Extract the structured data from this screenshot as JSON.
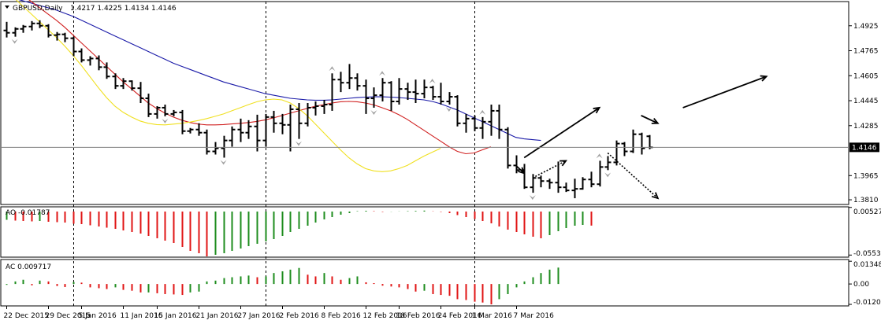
{
  "chart_data": [
    {
      "type": "ohlc",
      "title": "GBPUSD,Daily",
      "ohlc_text": "1.4217 1.4225 1.4134 1.4146",
      "price_ticks": [
        "1.4925",
        "1.4765",
        "1.4605",
        "1.4445",
        "1.4285",
        "1.3965",
        "1.3810"
      ],
      "current_price": "1.4146",
      "y_range": [
        1.378,
        1.508
      ],
      "x_labels": [
        "22 Dec 2015",
        "29 Dec 2015",
        "5 Jan 2016",
        "11 Jan 2016",
        "15 Jan 2016",
        "21 Jan 2016",
        "27 Jan 2016",
        "2 Feb 2016",
        "8 Feb 2016",
        "12 Feb 2016",
        "18 Feb 2016",
        "24 Feb 2016",
        "1 Mar 2016",
        "7 Mar 2016"
      ],
      "x_label_index": [
        0,
        5,
        9,
        14,
        18,
        23,
        28,
        33,
        38,
        43,
        47,
        52,
        56,
        61
      ],
      "period_separators_index": [
        8,
        31,
        56
      ],
      "bars": [
        [
          1.4895,
          1.495,
          1.485,
          1.488
        ],
        [
          1.488,
          1.4915,
          1.4855,
          1.4905
        ],
        [
          1.4905,
          1.493,
          1.488,
          1.492
        ],
        [
          1.492,
          1.4955,
          1.4895,
          1.494
        ],
        [
          1.494,
          1.496,
          1.491,
          1.4925
        ],
        [
          1.4925,
          1.4935,
          1.485,
          1.4865
        ],
        [
          1.4865,
          1.4885,
          1.483,
          1.487
        ],
        [
          1.487,
          1.488,
          1.482,
          1.4845
        ],
        [
          1.4845,
          1.4855,
          1.473,
          1.476
        ],
        [
          1.476,
          1.478,
          1.469,
          1.4705
        ],
        [
          1.4705,
          1.473,
          1.467,
          1.4715
        ],
        [
          1.4715,
          1.4735,
          1.464,
          1.466
        ],
        [
          1.466,
          1.469,
          1.4585,
          1.46
        ],
        [
          1.46,
          1.462,
          1.452,
          1.454
        ],
        [
          1.454,
          1.459,
          1.452,
          1.457
        ],
        [
          1.457,
          1.4575,
          1.451,
          1.4525
        ],
        [
          1.4525,
          1.4565,
          1.443,
          1.446
        ],
        [
          1.446,
          1.449,
          1.434,
          1.436
        ],
        [
          1.436,
          1.441,
          1.433,
          1.44
        ],
        [
          1.44,
          1.442,
          1.4345,
          1.436
        ],
        [
          1.436,
          1.4385,
          1.4345,
          1.437
        ],
        [
          1.437,
          1.4385,
          1.423,
          1.425
        ],
        [
          1.425,
          1.427,
          1.4235,
          1.426
        ],
        [
          1.426,
          1.43,
          1.422,
          1.424
        ],
        [
          1.424,
          1.426,
          1.41,
          1.412
        ],
        [
          1.412,
          1.418,
          1.41,
          1.414
        ],
        [
          1.414,
          1.422,
          1.408,
          1.419
        ],
        [
          1.419,
          1.428,
          1.415,
          1.426
        ],
        [
          1.426,
          1.433,
          1.418,
          1.424
        ],
        [
          1.424,
          1.432,
          1.42,
          1.428
        ],
        [
          1.428,
          1.4355,
          1.412,
          1.419
        ],
        [
          1.419,
          1.436,
          1.415,
          1.434
        ],
        [
          1.434,
          1.438,
          1.424,
          1.43
        ],
        [
          1.43,
          1.436,
          1.423,
          1.429
        ],
        [
          1.429,
          1.442,
          1.412,
          1.439
        ],
        [
          1.439,
          1.443,
          1.42,
          1.43
        ],
        [
          1.43,
          1.443,
          1.428,
          1.44
        ],
        [
          1.44,
          1.444,
          1.435,
          1.441
        ],
        [
          1.441,
          1.445,
          1.436,
          1.442
        ],
        [
          1.442,
          1.462,
          1.438,
          1.458
        ],
        [
          1.458,
          1.463,
          1.45,
          1.456
        ],
        [
          1.456,
          1.468,
          1.452,
          1.459
        ],
        [
          1.459,
          1.462,
          1.451,
          1.454
        ],
        [
          1.454,
          1.458,
          1.436,
          1.446
        ],
        [
          1.446,
          1.453,
          1.44,
          1.448
        ],
        [
          1.448,
          1.459,
          1.444,
          1.456
        ],
        [
          1.456,
          1.457,
          1.438,
          1.444
        ],
        [
          1.444,
          1.459,
          1.442,
          1.452
        ],
        [
          1.452,
          1.456,
          1.445,
          1.45
        ],
        [
          1.45,
          1.458,
          1.443,
          1.449
        ],
        [
          1.449,
          1.458,
          1.446,
          1.453
        ],
        [
          1.453,
          1.454,
          1.445,
          1.447
        ],
        [
          1.447,
          1.456,
          1.442,
          1.444
        ],
        [
          1.444,
          1.45,
          1.442,
          1.447
        ],
        [
          1.447,
          1.448,
          1.428,
          1.43
        ],
        [
          1.43,
          1.436,
          1.424,
          1.433
        ],
        [
          1.433,
          1.435,
          1.425,
          1.427
        ],
        [
          1.427,
          1.434,
          1.42,
          1.431
        ],
        [
          1.431,
          1.442,
          1.422,
          1.438
        ],
        [
          1.438,
          1.442,
          1.42,
          1.426
        ],
        [
          1.426,
          1.4275,
          1.401,
          1.403
        ],
        [
          1.403,
          1.4095,
          1.398,
          1.4
        ],
        [
          1.4,
          1.404,
          1.388,
          1.389
        ],
        [
          1.389,
          1.3975,
          1.3855,
          1.395
        ],
        [
          1.395,
          1.3965,
          1.389,
          1.393
        ],
        [
          1.393,
          1.3945,
          1.388,
          1.392
        ],
        [
          1.392,
          1.4055,
          1.3855,
          1.389
        ],
        [
          1.389,
          1.392,
          1.386,
          1.387
        ],
        [
          1.387,
          1.3945,
          1.382,
          1.388
        ],
        [
          1.388,
          1.3955,
          1.3875,
          1.394
        ],
        [
          1.394,
          1.399,
          1.389,
          1.391
        ],
        [
          1.391,
          1.406,
          1.3895,
          1.402
        ],
        [
          1.402,
          1.409,
          1.4,
          1.405
        ],
        [
          1.405,
          1.419,
          1.403,
          1.417
        ],
        [
          1.417,
          1.418,
          1.409,
          1.412
        ],
        [
          1.412,
          1.426,
          1.411,
          1.423
        ],
        [
          1.423,
          1.424,
          1.41,
          1.414
        ],
        [
          1.4217,
          1.4225,
          1.4134,
          1.4146
        ]
      ],
      "fractals_up_index": [
        39,
        45,
        51,
        57,
        71
      ],
      "fractals_down_index": [
        1,
        19,
        26,
        35,
        44,
        53,
        63,
        72
      ],
      "ma_slow": [
        1.512,
        1.51,
        1.5085,
        1.507,
        1.5055,
        1.504,
        1.5025,
        1.5005,
        1.4985,
        1.496,
        1.4935,
        1.491,
        1.4885,
        1.486,
        1.4835,
        1.481,
        1.4785,
        1.476,
        1.4735,
        1.471,
        1.4685,
        1.4665,
        1.4645,
        1.4625,
        1.4605,
        1.4585,
        1.4565,
        1.455,
        1.4535,
        1.452,
        1.4505,
        1.449,
        1.448,
        1.447,
        1.446,
        1.4455,
        1.445,
        1.4448,
        1.4448,
        1.445,
        1.4455,
        1.446,
        1.4465,
        1.4468,
        1.447,
        1.447,
        1.4468,
        1.4465,
        1.446,
        1.4455,
        1.445,
        1.444,
        1.4425,
        1.4405,
        1.4385,
        1.436,
        1.4335,
        1.431,
        1.4285,
        1.426,
        1.4235,
        1.421,
        1.42,
        1.4195,
        1.419
      ],
      "ma_mid": [
        1.52,
        1.516,
        1.512,
        1.508,
        1.504,
        1.5,
        1.496,
        1.4915,
        1.4865,
        1.4815,
        1.4765,
        1.4715,
        1.4665,
        1.4615,
        1.4565,
        1.452,
        1.4475,
        1.443,
        1.4395,
        1.4365,
        1.434,
        1.432,
        1.4305,
        1.4295,
        1.429,
        1.429,
        1.4292,
        1.4296,
        1.43,
        1.4305,
        1.4312,
        1.4322,
        1.4335,
        1.435,
        1.4365,
        1.438,
        1.4395,
        1.441,
        1.442,
        1.443,
        1.4438,
        1.444,
        1.4438,
        1.443,
        1.4418,
        1.44,
        1.438,
        1.4355,
        1.4325,
        1.429,
        1.4255,
        1.422,
        1.4185,
        1.415,
        1.412,
        1.4105,
        1.411,
        1.413,
        1.415
      ],
      "ma_fast": [
        1.515,
        1.51,
        1.505,
        1.5,
        1.495,
        1.49,
        1.485,
        1.4795,
        1.4735,
        1.467,
        1.46,
        1.453,
        1.4465,
        1.441,
        1.437,
        1.434,
        1.4315,
        1.43,
        1.4292,
        1.429,
        1.4295,
        1.43,
        1.4308,
        1.4318,
        1.433,
        1.4345,
        1.436,
        1.438,
        1.44,
        1.442,
        1.4438,
        1.445,
        1.4455,
        1.445,
        1.443,
        1.4395,
        1.435,
        1.4295,
        1.424,
        1.4185,
        1.413,
        1.408,
        1.404,
        1.401,
        1.3995,
        1.399,
        1.3995,
        1.401,
        1.403,
        1.406,
        1.409,
        1.4115,
        1.414
      ],
      "arrows": [
        {
          "type": "solid",
          "from": [
            62,
            1.408
          ],
          "to": [
            71,
            1.44
          ]
        },
        {
          "type": "solid",
          "from": [
            81,
            1.44
          ],
          "to": [
            91,
            1.46
          ]
        },
        {
          "type": "solid",
          "from": [
            76,
            1.435
          ],
          "to": [
            78,
            1.43
          ]
        },
        {
          "type": "solid",
          "from": [
            61,
            1.403
          ],
          "to": [
            62,
            1.398
          ]
        },
        {
          "type": "dotted",
          "from": [
            63,
            1.395
          ],
          "to": [
            67,
            1.406
          ]
        },
        {
          "type": "dotted",
          "from": [
            72,
            1.411
          ],
          "to": [
            78,
            1.382
          ]
        }
      ]
    },
    {
      "type": "bar",
      "title": "AO -0.01787",
      "ticks": [
        "0.00527",
        "-0.05534"
      ],
      "y_range": [
        -0.058,
        0.006
      ],
      "values": [
        -0.0105,
        -0.0115,
        -0.012,
        -0.0125,
        -0.012,
        -0.013,
        -0.0135,
        -0.014,
        -0.0155,
        -0.016,
        -0.0175,
        -0.019,
        -0.0205,
        -0.022,
        -0.024,
        -0.026,
        -0.028,
        -0.031,
        -0.034,
        -0.037,
        -0.04,
        -0.045,
        -0.05,
        -0.053,
        -0.057,
        -0.055,
        -0.053,
        -0.05,
        -0.047,
        -0.044,
        -0.041,
        -0.038,
        -0.035,
        -0.031,
        -0.026,
        -0.022,
        -0.018,
        -0.014,
        -0.01,
        -0.007,
        -0.004,
        -0.002,
        0.0005,
        0.001,
        0.0005,
        -0.0005,
        -0.0002,
        0.0002,
        0.0005,
        0.0008,
        0.0012,
        0.0003,
        -0.0005,
        -0.002,
        -0.0045,
        -0.007,
        -0.0095,
        -0.012,
        -0.015,
        -0.019,
        -0.023,
        -0.026,
        -0.029,
        -0.032,
        -0.034,
        -0.03,
        -0.025,
        -0.021,
        -0.018,
        -0.017,
        -0.01787
      ]
    },
    {
      "type": "bar",
      "title": "AC 0.009717",
      "ticks": [
        "0.013481",
        "0.00",
        "-0.01208"
      ],
      "y_range": [
        -0.013,
        0.0145
      ],
      "values": [
        -0.0005,
        0.0015,
        0.0025,
        -0.0008,
        0.002,
        0.0015,
        -0.0012,
        -0.0018,
        0.0012,
        0.0008,
        -0.002,
        -0.0025,
        -0.003,
        -0.002,
        -0.0035,
        -0.004,
        -0.005,
        -0.005,
        -0.0055,
        -0.006,
        -0.0062,
        -0.0065,
        -0.005,
        -0.0045,
        0.0015,
        0.002,
        0.0035,
        0.004,
        0.0045,
        0.005,
        0.004,
        0.0045,
        0.0065,
        0.0075,
        0.0085,
        0.0095,
        0.0055,
        0.0045,
        0.0065,
        0.0045,
        0.0025,
        0.0035,
        0.0045,
        0.001,
        0.0005,
        -0.001,
        -0.0015,
        -0.002,
        -0.003,
        -0.0045,
        -0.004,
        -0.006,
        -0.0065,
        -0.007,
        -0.009,
        -0.0095,
        -0.0105,
        -0.011,
        -0.01208,
        -0.009,
        -0.006,
        -0.002,
        0.0015,
        0.004,
        0.0065,
        0.0085,
        0.009717
      ]
    }
  ],
  "colors": {
    "bar": "#000000",
    "ma_slow": "#1a1aa8",
    "ma_mid": "#d02020",
    "ma_fast": "#f0e020",
    "up": "#1e8c1e",
    "down": "#e01414",
    "fractal": "#a0a0a0",
    "grid": "#c0c0c0",
    "price_box": "#000000",
    "price_box_text": "#ffffff"
  }
}
